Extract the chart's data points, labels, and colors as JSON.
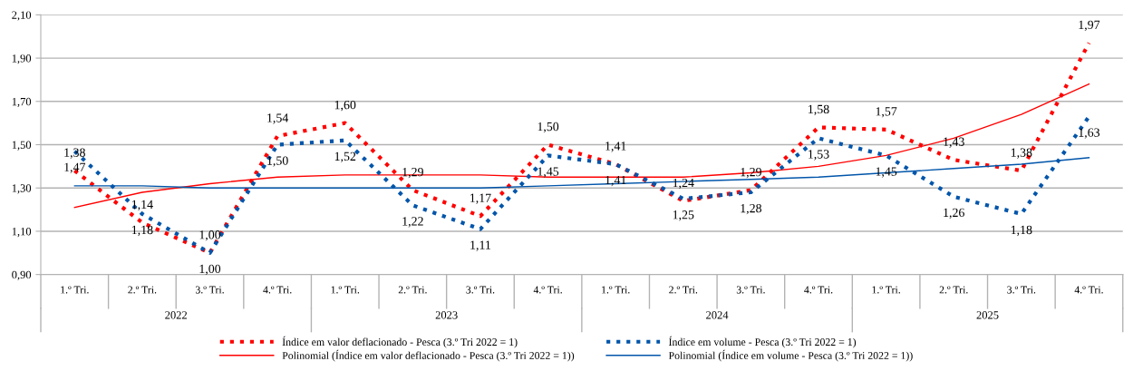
{
  "chart_data": {
    "type": "line",
    "categories": [
      "1.º Tri.",
      "2.º Tri.",
      "3.º Tri.",
      "4.º Tri.",
      "1.º Tri.",
      "2.º Tri.",
      "3.º Tri.",
      "4.º Tri.",
      "1.º Tri.",
      "2.º Tri.",
      "3.º Tri.",
      "4.º Tri.",
      "1.º Tri.",
      "2.º Tri.",
      "3.º Tri.",
      "4.º Tri."
    ],
    "annotations": [
      "2022",
      "2023",
      "2024",
      "2025"
    ],
    "series": [
      {
        "name": "Índice em valor deflacionado - Pesca (3.º Tri 2022 = 1)",
        "color": "#ff0000",
        "line_style": "dotted",
        "values": [
          1.38,
          1.14,
          1.0,
          1.54,
          1.6,
          1.29,
          1.17,
          1.5,
          1.41,
          1.24,
          1.29,
          1.58,
          1.57,
          1.43,
          1.38,
          1.97
        ],
        "value_labels": [
          "1,38",
          "1,14",
          "1,00",
          "1,54",
          "1,60",
          "1,29",
          "1,17",
          "1,50",
          "1,41",
          "1,24",
          "1,29",
          "1,58",
          "1,57",
          "1,43",
          "1,38",
          "1,97"
        ]
      },
      {
        "name": "Polinomial (Índice em valor deflacionado - Pesca (3.º Tri 2022 = 1))",
        "color": "#ff0000",
        "line_style": "solid",
        "values": [
          1.21,
          1.28,
          1.32,
          1.35,
          1.36,
          1.36,
          1.36,
          1.35,
          1.35,
          1.35,
          1.37,
          1.4,
          1.45,
          1.53,
          1.64,
          1.78
        ]
      },
      {
        "name": "Índice em volume - Pesca (3.º Tri 2022 = 1)",
        "color": "#0055aa",
        "line_style": "dotted",
        "values": [
          1.47,
          1.18,
          1.0,
          1.5,
          1.52,
          1.22,
          1.11,
          1.45,
          1.41,
          1.25,
          1.28,
          1.53,
          1.45,
          1.26,
          1.18,
          1.63
        ],
        "value_labels": [
          "1,47",
          "1,18",
          "1,00",
          "1,50",
          "1,52",
          "1,22",
          "1,11",
          "1,45",
          "1,41",
          "1,25",
          "1,28",
          "1,53",
          "1,45",
          "1,26",
          "1,18",
          "1,63"
        ]
      },
      {
        "name": "Polinomial (Índice em volume - Pesca (3.º Tri 2022 = 1))",
        "color": "#0055aa",
        "line_style": "solid",
        "values": [
          1.31,
          1.31,
          1.3,
          1.3,
          1.3,
          1.3,
          1.3,
          1.31,
          1.32,
          1.33,
          1.34,
          1.35,
          1.37,
          1.39,
          1.41,
          1.44
        ]
      }
    ],
    "ylim": [
      0.9,
      2.1
    ],
    "yticks": [
      {
        "value": 0.9,
        "label": "0,90"
      },
      {
        "value": 1.1,
        "label": "1,10"
      },
      {
        "value": 1.3,
        "label": "1,30"
      },
      {
        "value": 1.5,
        "label": "1,50"
      },
      {
        "value": 1.7,
        "label": "1,70"
      },
      {
        "value": 1.9,
        "label": "1,90"
      },
      {
        "value": 2.1,
        "label": "2,10"
      }
    ],
    "grid": "y",
    "legend": "bottom",
    "marker": "none"
  }
}
